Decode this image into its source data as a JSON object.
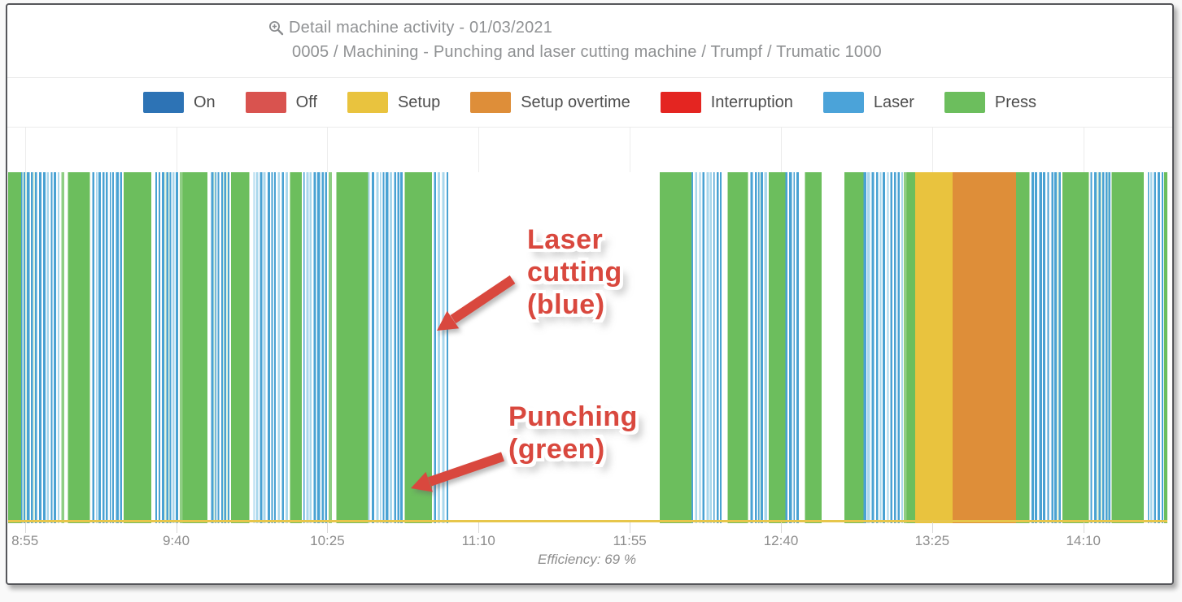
{
  "header": {
    "icon": "zoom-in-icon",
    "title": "Detail machine activity - 01/03/2021",
    "subtitle": "0005 / Machining - Punching and laser cutting machine / Trumpf / Trumatic 1000"
  },
  "legend": {
    "items": [
      {
        "label": "On",
        "color": "#2d73b5"
      },
      {
        "label": "Off",
        "color": "#d9534f"
      },
      {
        "label": "Setup",
        "color": "#e9c33e"
      },
      {
        "label": "Setup overtime",
        "color": "#de8e39"
      },
      {
        "label": "Interruption",
        "color": "#e42521"
      },
      {
        "label": "Laser",
        "color": "#4ba3d9"
      },
      {
        "label": "Press",
        "color": "#6cbe5d"
      }
    ]
  },
  "chart_data": {
    "type": "timeline",
    "title": "Detail machine activity - 01/03/2021",
    "x_min": "8:50",
    "x_max": "14:35",
    "x_ticks": [
      "8:55",
      "9:40",
      "10:25",
      "11:10",
      "11:55",
      "12:40",
      "13:25",
      "14:10"
    ],
    "grid": "vertical-only",
    "legend_position": "top-center",
    "baseline_color": "#e7c64b",
    "colors": {
      "press": "#6cbe5d",
      "press_light": "#8fce84",
      "laser": "#49a2d3",
      "laser_pale": "#a9d7ec",
      "setup": "#e9c33e",
      "setup_overtime": "#de8e39",
      "idle": "#ffffff",
      "gridline": "#ececec"
    },
    "segments": [
      {
        "state": "production_press_laser",
        "start": "8:50",
        "end": "11:01",
        "detail": "alternating Press (green) blocks and Laser (blue) stripe clusters"
      },
      {
        "state": "idle",
        "start": "11:01",
        "end": "12:04",
        "detail": "no activity"
      },
      {
        "state": "production_press_laser",
        "start": "12:04",
        "end": "12:52",
        "detail": "alternating Press (green) blocks and Laser (blue) stripe clusters"
      },
      {
        "state": "idle",
        "start": "12:52",
        "end": "12:59",
        "detail": "no activity"
      },
      {
        "state": "production_press_laser",
        "start": "12:59",
        "end": "13:20",
        "detail": "alternating Press (green) blocks and Laser (blue) stripe clusters"
      },
      {
        "state": "setup",
        "start": "13:20",
        "end": "13:31",
        "detail": "Setup (yellow)"
      },
      {
        "state": "setup_overtime",
        "start": "13:31",
        "end": "13:50",
        "detail": "Setup overtime (orange)"
      },
      {
        "state": "production_press_laser",
        "start": "13:50",
        "end": "14:35",
        "detail": "alternating Press (green) blocks and Laser (blue) stripe clusters"
      }
    ],
    "efficiency_label": "Efficiency: 69 %"
  },
  "annotations": [
    {
      "id": "laser-cutting",
      "lines": [
        "Laser",
        "cutting",
        "(blue)"
      ],
      "color": "#d9483e",
      "points_to": "blue laser stripes"
    },
    {
      "id": "punching",
      "lines": [
        "Punching",
        "(green)"
      ],
      "color": "#d9483e",
      "points_to": "green press blocks"
    }
  ]
}
